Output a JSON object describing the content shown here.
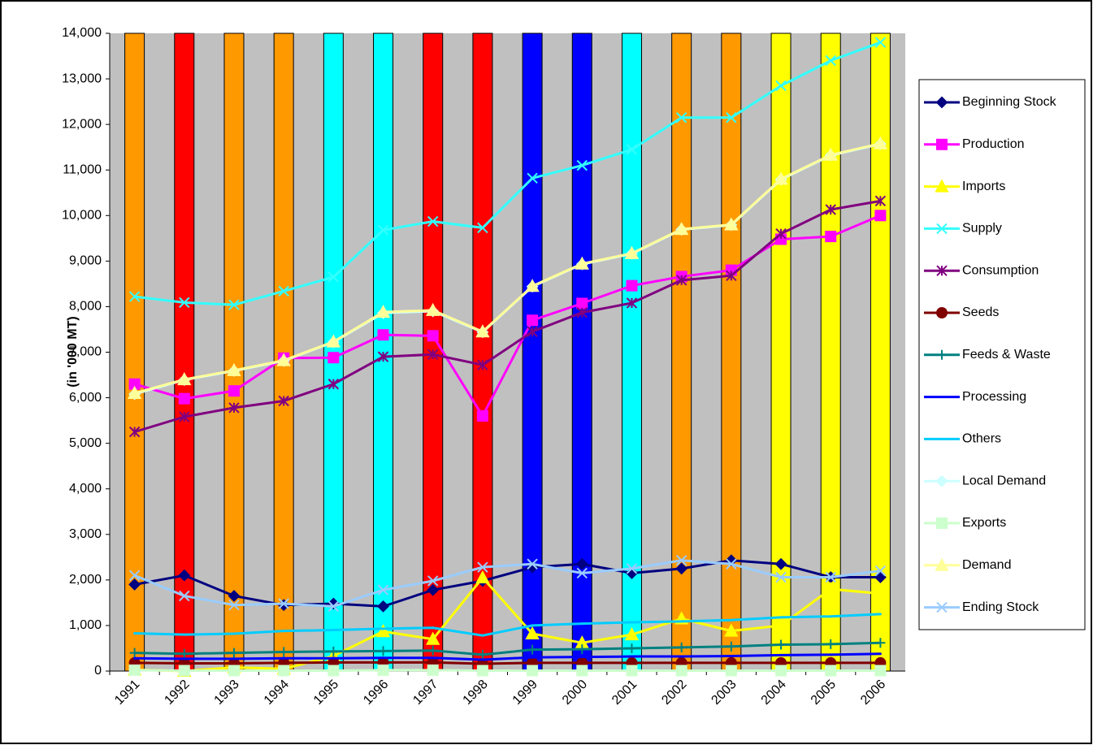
{
  "chart_data": {
    "type": "line",
    "y_label": "(in '000 MT)",
    "categories": [
      "1991",
      "1992",
      "1993",
      "1994",
      "1995",
      "1996",
      "1997",
      "1998",
      "1999",
      "2000",
      "2001",
      "2002",
      "2003",
      "2004",
      "2005",
      "2006"
    ],
    "band_colors": [
      "#ff9900",
      "#ff0000",
      "#ff9900",
      "#ff9900",
      "#00ffff",
      "#00ffff",
      "#ff0000",
      "#ff0000",
      "#0000ff",
      "#0000ff",
      "#00ffff",
      "#ff9900",
      "#ff9900",
      "#ffff00",
      "#ffff00",
      "#ffff00"
    ],
    "plot_background": "#c0c0c0",
    "ylim": [
      0,
      14000
    ],
    "yticks": [
      0,
      {
        "value": 1000,
        "label": "1,000"
      },
      {
        "value": 2000,
        "label": "2,000"
      },
      {
        "value": 3000,
        "label": "3,000"
      },
      {
        "value": 4000,
        "label": "4,000"
      },
      {
        "value": 5000,
        "label": "5,000"
      },
      {
        "value": 6000,
        "label": "6,000"
      },
      {
        "value": 7000,
        "label": "7,000"
      },
      {
        "value": 8000,
        "label": "8,000"
      },
      {
        "value": 9000,
        "label": "9,000"
      },
      {
        "value": 10000,
        "label": "10,000"
      },
      {
        "value": 11000,
        "label": "11,000"
      },
      {
        "value": 12000,
        "label": "12,000"
      },
      {
        "value": 13000,
        "label": "13,000"
      },
      {
        "value": 14000,
        "label": "14,000"
      }
    ],
    "grid": false,
    "legend": "right",
    "series": [
      {
        "name": "Beginning Stock",
        "color": "#000080",
        "marker": "diamond",
        "values": [
          1900,
          2100,
          1650,
          1450,
          1480,
          1420,
          1780,
          1980,
          2280,
          2350,
          2150,
          2250,
          2430,
          2350,
          2060,
          2060
        ]
      },
      {
        "name": "Production",
        "color": "#ff00ff",
        "marker": "square",
        "values": [
          6300,
          5980,
          6150,
          6870,
          6880,
          7380,
          7360,
          5600,
          7700,
          8070,
          8460,
          8660,
          8800,
          9480,
          9540,
          10000
        ]
      },
      {
        "name": "Imports",
        "color": "#ffff00",
        "marker": "triangle",
        "values": [
          30,
          0,
          80,
          50,
          330,
          870,
          700,
          2050,
          820,
          620,
          800,
          1150,
          880,
          1000,
          1800,
          1700
        ]
      },
      {
        "name": "Supply",
        "color": "#33ffff",
        "marker": "x",
        "values": [
          8220,
          8090,
          8040,
          8340,
          8650,
          9680,
          9870,
          9730,
          10820,
          11100,
          11450,
          12150,
          12150,
          12850,
          13400,
          13800
        ]
      },
      {
        "name": "Consumption",
        "color": "#800080",
        "marker": "star",
        "values": [
          5250,
          5580,
          5780,
          5930,
          6300,
          6900,
          6950,
          6720,
          7450,
          7870,
          8080,
          8580,
          8680,
          9600,
          10130,
          10320
        ]
      },
      {
        "name": "Seeds",
        "color": "#800000",
        "marker": "circle",
        "values": [
          180,
          170,
          170,
          180,
          190,
          190,
          190,
          160,
          180,
          180,
          180,
          180,
          180,
          180,
          180,
          180
        ]
      },
      {
        "name": "Feeds & Waste",
        "color": "#008080",
        "marker": "plus",
        "values": [
          400,
          380,
          400,
          420,
          430,
          440,
          450,
          360,
          470,
          480,
          500,
          520,
          540,
          580,
          590,
          620
        ]
      },
      {
        "name": "Processing",
        "color": "#0000ff",
        "marker": "none",
        "values": [
          280,
          270,
          270,
          280,
          280,
          290,
          290,
          250,
          300,
          310,
          320,
          320,
          330,
          350,
          360,
          380
        ]
      },
      {
        "name": "Others",
        "color": "#00ccff",
        "marker": "none",
        "values": [
          830,
          800,
          820,
          880,
          900,
          930,
          950,
          780,
          1000,
          1040,
          1070,
          1090,
          1120,
          1180,
          1200,
          1250
        ]
      },
      {
        "name": "Local Demand",
        "color": "#ccffff",
        "marker": "diamond",
        "values": [
          6080,
          6390,
          6590,
          6810,
          7220,
          7860,
          7900,
          7440,
          8440,
          8930,
          9160,
          9690,
          9790,
          10790,
          11320,
          11570
        ]
      },
      {
        "name": "Exports",
        "color": "#ccffcc",
        "marker": "square",
        "values": [
          20,
          10,
          10,
          10,
          10,
          20,
          20,
          10,
          10,
          10,
          10,
          10,
          10,
          10,
          10,
          10
        ]
      },
      {
        "name": "Demand",
        "color": "#ffff99",
        "marker": "triangle",
        "values": [
          6100,
          6400,
          6600,
          6820,
          7230,
          7880,
          7920,
          7450,
          8450,
          8940,
          9170,
          9700,
          9800,
          10800,
          11330,
          11580
        ]
      },
      {
        "name": "Ending Stock",
        "color": "#99ccff",
        "marker": "x",
        "values": [
          2100,
          1650,
          1450,
          1480,
          1420,
          1780,
          1980,
          2280,
          2350,
          2150,
          2250,
          2430,
          2350,
          2060,
          2060,
          2200
        ]
      }
    ]
  }
}
